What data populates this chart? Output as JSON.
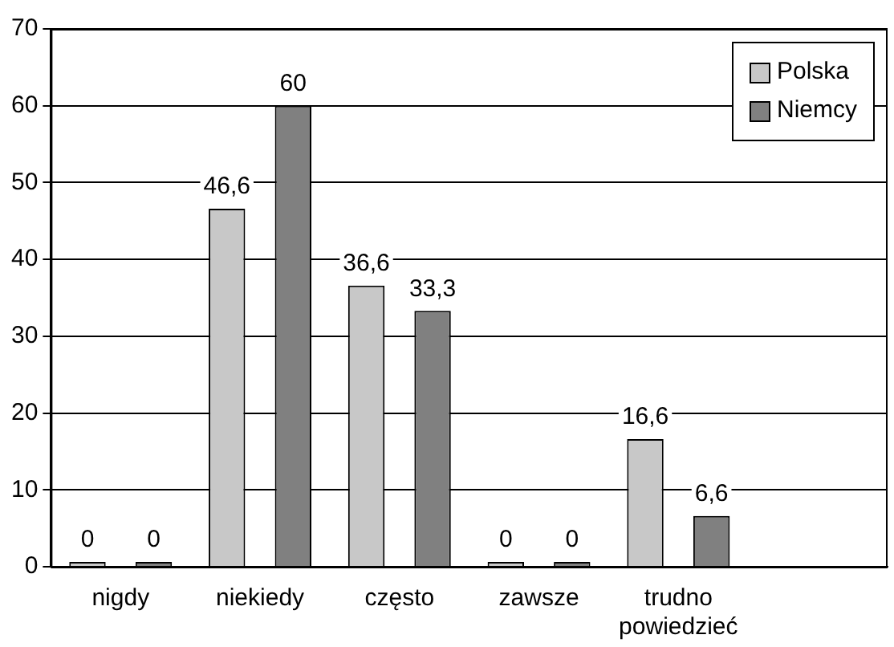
{
  "chart_data": {
    "type": "bar",
    "categories": [
      "nigdy",
      "niekiedy",
      "często",
      "zawsze",
      "trudno powiedzieć",
      null
    ],
    "series": [
      {
        "name": "Polska",
        "color": "#c8c8c8",
        "values": [
          0,
          46.6,
          36.6,
          0,
          16.6,
          null
        ],
        "value_labels": [
          "0",
          "46,6",
          "36,6",
          "0",
          "16,6",
          null
        ]
      },
      {
        "name": "Niemcy",
        "color": "#808080",
        "values": [
          0,
          60,
          33.3,
          0,
          6.6,
          null
        ],
        "value_labels": [
          "0",
          "60",
          "33,3",
          "0",
          "6,6",
          null
        ]
      }
    ],
    "ylim": [
      0,
      70
    ],
    "yticks": [
      0,
      10,
      20,
      30,
      40,
      50,
      60,
      70
    ],
    "grid": "y",
    "legend": "top right"
  }
}
